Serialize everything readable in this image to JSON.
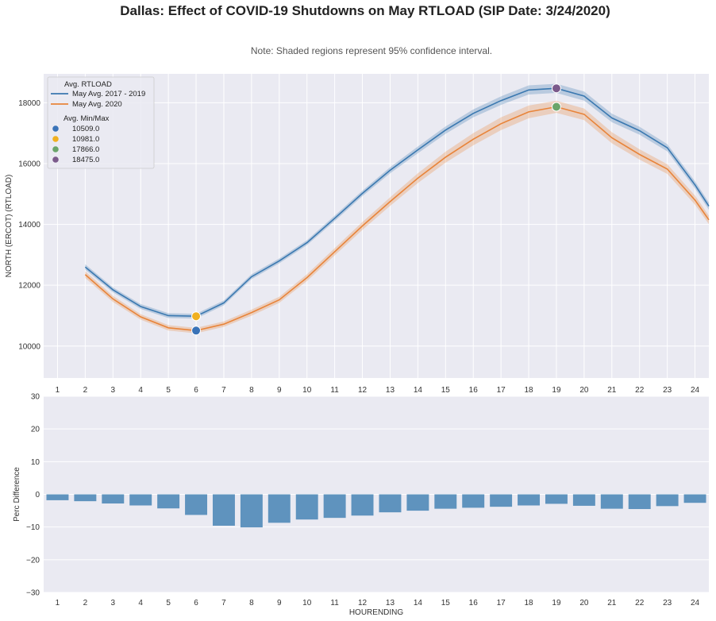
{
  "title": "Dallas: Effect of COVID-19 Shutdowns on May RTLOAD (SIP Date: 3/24/2020)",
  "note": "Note: Shaded regions represent 95% confidence interval.",
  "colors": {
    "background": "#eaeaf2",
    "grid": "#ffffff",
    "series_2017_2019": "#3a78b0",
    "series_2020": "#e8843a",
    "bar": "#5f93be",
    "marker_min_2020": "#3a73b8",
    "marker_min_hist": "#f0b020",
    "marker_max_2020": "#6aa56a",
    "marker_max_hist": "#7b5a8b"
  },
  "chart_data": [
    {
      "type": "line",
      "ylabel": "NORTH (ERCOT) (RTLOAD)",
      "xlabel": "",
      "x_ticks": [
        1,
        2,
        3,
        4,
        5,
        6,
        7,
        8,
        9,
        10,
        11,
        12,
        13,
        14,
        15,
        16,
        17,
        18,
        19,
        20,
        21,
        22,
        23,
        24
      ],
      "x_lim": [
        0.5,
        24.5
      ],
      "y_ticks": [
        10000,
        12000,
        14000,
        16000,
        18000
      ],
      "ylim": [
        8950,
        18950
      ],
      "grid": true,
      "legend_position": "top-left",
      "series": [
        {
          "name": "May Avg. 2017 - 2019",
          "x": [
            2,
            3,
            4,
            5,
            6,
            7,
            8,
            9,
            10,
            11,
            12,
            13,
            14,
            15,
            16,
            17,
            18,
            19,
            20,
            21,
            22,
            23,
            24,
            24.5
          ],
          "y": [
            12600,
            11850,
            11300,
            11000,
            10981,
            11420,
            12280,
            12800,
            13400,
            14200,
            15020,
            15780,
            16450,
            17100,
            17650,
            18070,
            18420,
            18475,
            18220,
            17500,
            17080,
            16520,
            15300,
            14600
          ],
          "ci": [
            90,
            80,
            80,
            80,
            80,
            80,
            80,
            80,
            80,
            90,
            90,
            100,
            110,
            120,
            130,
            140,
            150,
            150,
            150,
            140,
            130,
            120,
            120,
            120
          ]
        },
        {
          "name": "May Avg. 2020",
          "x": [
            2,
            3,
            4,
            5,
            6,
            7,
            8,
            9,
            10,
            11,
            12,
            13,
            14,
            15,
            16,
            17,
            18,
            19,
            20,
            21,
            22,
            23,
            24,
            24.5
          ],
          "y": [
            12350,
            11550,
            10960,
            10600,
            10509,
            10720,
            11100,
            11520,
            12250,
            13100,
            13950,
            14750,
            15520,
            16210,
            16800,
            17310,
            17700,
            17866,
            17620,
            16850,
            16300,
            15820,
            14800,
            14150
          ],
          "ci": [
            110,
            100,
            90,
            90,
            90,
            90,
            100,
            100,
            110,
            120,
            130,
            140,
            160,
            180,
            200,
            210,
            210,
            200,
            190,
            180,
            170,
            160,
            150,
            140
          ]
        }
      ],
      "legend": {
        "title_line": "Avg. RTLOAD",
        "marker_title": "Avg. Min/Max",
        "markers": [
          {
            "label": "10509.0",
            "x": 6,
            "y": 10509,
            "color": "#3a73b8"
          },
          {
            "label": "10981.0",
            "x": 6,
            "y": 10981,
            "color": "#f0b020"
          },
          {
            "label": "17866.0",
            "x": 19,
            "y": 17866,
            "color": "#6aa56a"
          },
          {
            "label": "18475.0",
            "x": 19,
            "y": 18475,
            "color": "#7b5a8b"
          }
        ]
      }
    },
    {
      "type": "bar",
      "xlabel": "HOURENDING",
      "ylabel": "Perc Difference",
      "categories": [
        "1",
        "2",
        "3",
        "4",
        "5",
        "6",
        "7",
        "8",
        "9",
        "10",
        "11",
        "12",
        "13",
        "14",
        "15",
        "16",
        "17",
        "18",
        "19",
        "20",
        "21",
        "22",
        "23",
        "24"
      ],
      "values": [
        -1.8,
        -2.1,
        -2.8,
        -3.4,
        -4.3,
        -6.3,
        -9.6,
        -10.1,
        -8.7,
        -7.7,
        -7.2,
        -6.5,
        -5.5,
        -5.0,
        -4.4,
        -4.1,
        -3.8,
        -3.4,
        -2.9,
        -3.5,
        -4.4,
        -4.5,
        -3.6,
        -2.6
      ],
      "y_ticks": [
        30,
        20,
        10,
        0,
        -10,
        -20,
        -30
      ],
      "ylim": [
        -30,
        30
      ],
      "grid": true
    }
  ]
}
